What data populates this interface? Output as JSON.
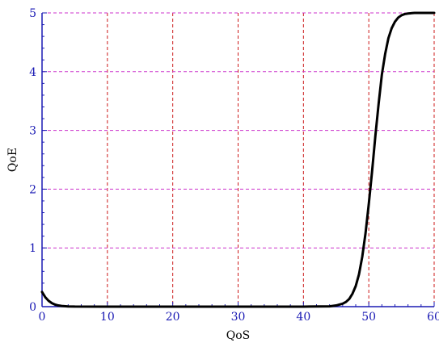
{
  "chart_data": {
    "type": "line",
    "title": "",
    "xlabel": "QoS",
    "ylabel": "QoE",
    "xlim": [
      0,
      60
    ],
    "ylim": [
      0,
      5
    ],
    "xticks": [
      "0",
      "10",
      "20",
      "30",
      "40",
      "50",
      "60"
    ],
    "yticks": [
      "0",
      "1",
      "2",
      "3",
      "4",
      "5"
    ],
    "grid": true,
    "series": [
      {
        "x": [
          0,
          0.5,
          1,
          1.5,
          2,
          2.5,
          3,
          4,
          5,
          10,
          20,
          30,
          40,
          44,
          45,
          46,
          46.5,
          47,
          47.5,
          48,
          48.5,
          49,
          49.5,
          50,
          50.5,
          51,
          51.5,
          52,
          52.5,
          53,
          53.5,
          54,
          54.5,
          55,
          55.5,
          56,
          57,
          58,
          60
        ],
        "y": [
          0.25,
          0.16,
          0.1,
          0.06,
          0.035,
          0.02,
          0.012,
          0.004,
          0.001,
          0,
          0,
          0,
          0,
          0.005,
          0.02,
          0.05,
          0.08,
          0.13,
          0.22,
          0.35,
          0.55,
          0.85,
          1.25,
          1.75,
          2.3,
          2.9,
          3.45,
          3.95,
          4.3,
          4.57,
          4.74,
          4.85,
          4.92,
          4.96,
          4.98,
          4.99,
          5,
          5,
          5
        ]
      }
    ]
  },
  "colors": {
    "grid_vertical": "#cc1a1a",
    "grid_horizontal": "#cc33cc",
    "axis": "#1a1ab4",
    "tick_label": "#1a1ab4",
    "line": "#000000"
  }
}
